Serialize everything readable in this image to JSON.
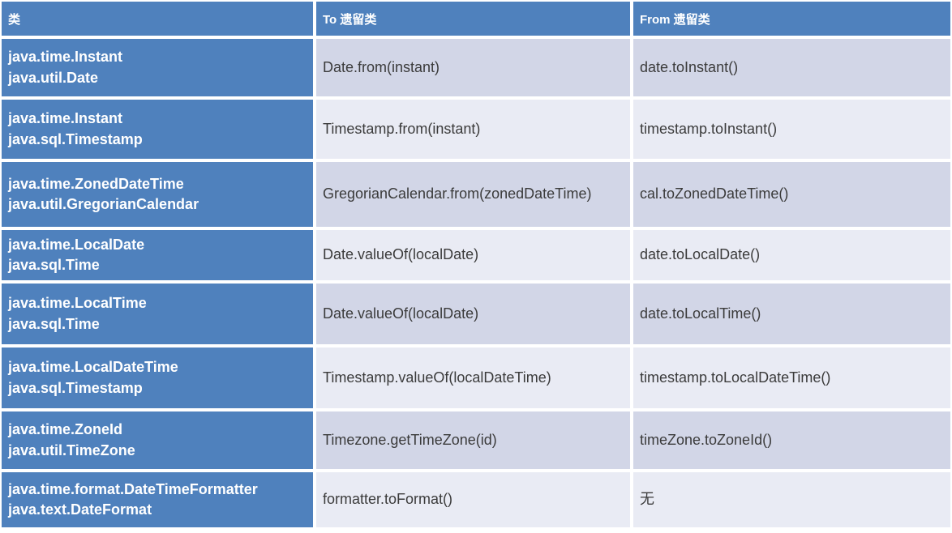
{
  "table": {
    "colors": {
      "accent_blue": "#4F81BD",
      "band_dark": "#D2D6E7",
      "band_light": "#E9EBF4",
      "header_text": "#FFFFFF",
      "body_text": "#3B3B3B",
      "grid_gap": "#FFFFFF"
    },
    "header": [
      "类",
      "To 遗留类",
      "From 遗留类"
    ],
    "rows": [
      {
        "class_lines": [
          "java.time.Instant",
          "java.util.Date"
        ],
        "to_legacy": "Date.from(instant)",
        "from_legacy": "date.toInstant()"
      },
      {
        "class_lines": [
          "java.time.Instant",
          "java.sql.Timestamp"
        ],
        "to_legacy": "Timestamp.from(instant)",
        "from_legacy": "timestamp.toInstant()"
      },
      {
        "class_lines": [
          "java.time.ZonedDateTime",
          "java.util.GregorianCalendar"
        ],
        "to_legacy": "GregorianCalendar.from(zonedDateTime)",
        "from_legacy": "cal.toZonedDateTime()"
      },
      {
        "class_lines": [
          "java.time.LocalDate",
          "java.sql.Time"
        ],
        "to_legacy": "Date.valueOf(localDate)",
        "from_legacy": "date.toLocalDate()"
      },
      {
        "class_lines": [
          "java.time.LocalTime",
          "java.sql.Time"
        ],
        "to_legacy": "Date.valueOf(localDate)",
        "from_legacy": "date.toLocalTime()"
      },
      {
        "class_lines": [
          "java.time.LocalDateTime",
          "java.sql.Timestamp"
        ],
        "to_legacy": "Timestamp.valueOf(localDateTime)",
        "from_legacy": "timestamp.toLocalDateTime()"
      },
      {
        "class_lines": [
          "java.time.ZoneId",
          "java.util.TimeZone"
        ],
        "to_legacy": "Timezone.getTimeZone(id)",
        "from_legacy": "timeZone.toZoneId()"
      },
      {
        "class_lines": [
          "java.time.format.DateTimeFormatter",
          "java.text.DateFormat"
        ],
        "to_legacy": "formatter.toFormat()",
        "from_legacy": "无"
      }
    ]
  }
}
